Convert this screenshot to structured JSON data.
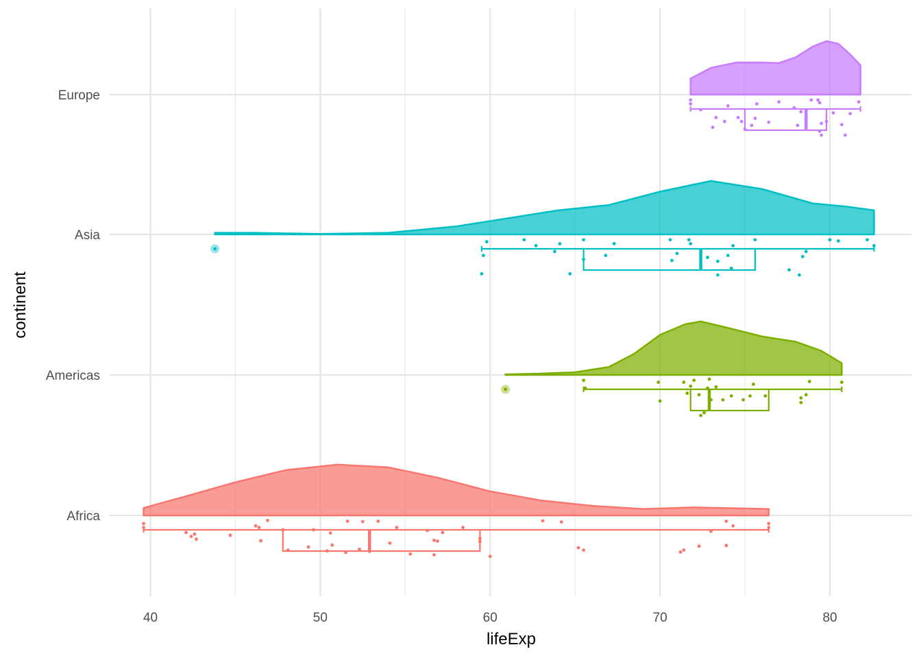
{
  "chart_data": {
    "type": "raincloud",
    "title": "",
    "xlabel": "lifeExp",
    "ylabel": "continent",
    "xlim": [
      37.6,
      84.8
    ],
    "x_ticks": [
      40,
      50,
      60,
      70,
      80
    ],
    "x_tick_labels": [
      "40",
      "50",
      "60",
      "70",
      "80"
    ],
    "categories": [
      "Africa",
      "Americas",
      "Asia",
      "Europe"
    ],
    "grid": true,
    "legend": "none",
    "series": [
      {
        "name": "Africa",
        "color": "#F8766D",
        "box": {
          "min": 39.6,
          "q1": 47.8,
          "median": 52.9,
          "q3": 59.4,
          "max": 76.4
        },
        "outliers": [],
        "density": [
          [
            39.6,
            0.14
          ],
          [
            42,
            0.35
          ],
          [
            45,
            0.62
          ],
          [
            48,
            0.85
          ],
          [
            51,
            0.95
          ],
          [
            54,
            0.9
          ],
          [
            57,
            0.7
          ],
          [
            60,
            0.45
          ],
          [
            63,
            0.28
          ],
          [
            66,
            0.18
          ],
          [
            69,
            0.12
          ],
          [
            72,
            0.15
          ],
          [
            75,
            0.13
          ],
          [
            76.4,
            0.12
          ]
        ],
        "points": [
          [
            39.6,
            0.12
          ],
          [
            39.6,
            0.22
          ],
          [
            42.1,
            0.35
          ],
          [
            42.4,
            0.45
          ],
          [
            42.6,
            0.39
          ],
          [
            42.7,
            0.52
          ],
          [
            44.7,
            0.42
          ],
          [
            46.2,
            0.18
          ],
          [
            46.4,
            0.22
          ],
          [
            46.5,
            0.56
          ],
          [
            46.9,
            0.04
          ],
          [
            47.8,
            0.28
          ],
          [
            48.1,
            0.8
          ],
          [
            49.3,
            0.72
          ],
          [
            49.6,
            0.28
          ],
          [
            50.4,
            0.82
          ],
          [
            50.6,
            0.36
          ],
          [
            50.7,
            0.67
          ],
          [
            51.5,
            0.86
          ],
          [
            51.6,
            0.06
          ],
          [
            52.3,
            0.78
          ],
          [
            52.5,
            0.07
          ],
          [
            52.9,
            0.83
          ],
          [
            53.4,
            0.06
          ],
          [
            54.1,
            0.62
          ],
          [
            54.5,
            0.22
          ],
          [
            55.3,
            0.9
          ],
          [
            56.3,
            0.3
          ],
          [
            56.7,
            0.55
          ],
          [
            56.7,
            0.92
          ],
          [
            56.9,
            0.57
          ],
          [
            57.2,
            0.35
          ],
          [
            58.4,
            0.22
          ],
          [
            59.4,
            0.5
          ],
          [
            59.4,
            0.58
          ],
          [
            60.0,
            0.96
          ],
          [
            63.1,
            0.05
          ],
          [
            64.2,
            0.08
          ],
          [
            65.2,
            0.74
          ],
          [
            65.5,
            0.8
          ],
          [
            71.2,
            0.85
          ],
          [
            71.4,
            0.8
          ],
          [
            72.3,
            0.7
          ],
          [
            73.0,
            0.32
          ],
          [
            73.9,
            0.06
          ],
          [
            73.9,
            0.68
          ],
          [
            74.3,
            0.18
          ],
          [
            76.4,
            0.12
          ],
          [
            76.4,
            0.22
          ]
        ]
      },
      {
        "name": "Americas",
        "color": "#7CAE00",
        "box": {
          "min": 65.5,
          "q1": 71.8,
          "median": 72.9,
          "q3": 76.4,
          "max": 80.7
        },
        "outliers": [
          60.9
        ],
        "density": [
          [
            60.9,
            0.01
          ],
          [
            63,
            0.025
          ],
          [
            65,
            0.05
          ],
          [
            67,
            0.15
          ],
          [
            68.5,
            0.4
          ],
          [
            70,
            0.75
          ],
          [
            71.5,
            0.95
          ],
          [
            72.4,
            1.0
          ],
          [
            74,
            0.88
          ],
          [
            76,
            0.72
          ],
          [
            78,
            0.62
          ],
          [
            79.5,
            0.45
          ],
          [
            80.7,
            0.22
          ]
        ],
        "points": [
          [
            65.5,
            0.05
          ],
          [
            65.6,
            0.25
          ],
          [
            69.9,
            0.1
          ],
          [
            70.0,
            0.58
          ],
          [
            71.4,
            0.1
          ],
          [
            71.6,
            0.38
          ],
          [
            71.8,
            0.2
          ],
          [
            72.0,
            0.05
          ],
          [
            72.3,
            0.42
          ],
          [
            72.4,
            0.95
          ],
          [
            72.6,
            0.88
          ],
          [
            72.8,
            0.25
          ],
          [
            72.9,
            0.02
          ],
          [
            73.0,
            0.55
          ],
          [
            73.3,
            0.22
          ],
          [
            73.7,
            0.55
          ],
          [
            74.2,
            0.45
          ],
          [
            74.9,
            0.55
          ],
          [
            75.3,
            0.45
          ],
          [
            75.5,
            0.15
          ],
          [
            76.2,
            0.45
          ],
          [
            78.3,
            0.5
          ],
          [
            78.6,
            0.42
          ],
          [
            78.8,
            0.08
          ],
          [
            78.3,
            0.62
          ],
          [
            80.7,
            0.1
          ]
        ]
      },
      {
        "name": "Asia",
        "color": "#00BFC4",
        "box": {
          "min": 59.5,
          "q1": 65.5,
          "median": 72.4,
          "q3": 75.6,
          "max": 82.6
        },
        "outliers": [
          43.8
        ],
        "density": [
          [
            43.8,
            0.03
          ],
          [
            46,
            0.03
          ],
          [
            50,
            0.01
          ],
          [
            54,
            0.03
          ],
          [
            58,
            0.15
          ],
          [
            61,
            0.3
          ],
          [
            64,
            0.45
          ],
          [
            67,
            0.55
          ],
          [
            70,
            0.8
          ],
          [
            73,
            1.0
          ],
          [
            76,
            0.85
          ],
          [
            79,
            0.58
          ],
          [
            81,
            0.52
          ],
          [
            82.6,
            0.45
          ]
        ],
        "points": [
          [
            59.5,
            0.92
          ],
          [
            59.6,
            0.45
          ],
          [
            59.8,
            0.1
          ],
          [
            62.0,
            0.05
          ],
          [
            62.7,
            0.2
          ],
          [
            63.8,
            0.35
          ],
          [
            64.1,
            0.15
          ],
          [
            64.7,
            0.92
          ],
          [
            65.5,
            0.05
          ],
          [
            65.5,
            0.55
          ],
          [
            66.8,
            0.45
          ],
          [
            67.3,
            0.15
          ],
          [
            70.6,
            0.05
          ],
          [
            70.7,
            0.58
          ],
          [
            71.0,
            0.4
          ],
          [
            71.7,
            0.05
          ],
          [
            71.8,
            0.15
          ],
          [
            72.4,
            0.35
          ],
          [
            72.8,
            0.5
          ],
          [
            73.4,
            0.6
          ],
          [
            73.4,
            0.95
          ],
          [
            74.2,
            0.78
          ],
          [
            74.0,
            0.45
          ],
          [
            74.3,
            0.2
          ],
          [
            75.6,
            0.05
          ],
          [
            77.6,
            0.82
          ],
          [
            78.2,
            0.95
          ],
          [
            78.4,
            0.48
          ],
          [
            78.6,
            0.35
          ],
          [
            80.0,
            0.05
          ],
          [
            80.5,
            0.08
          ],
          [
            82.2,
            0.05
          ],
          [
            82.6,
            0.2
          ]
        ]
      },
      {
        "name": "Europe",
        "color": "#C77CFF",
        "box": {
          "min": 71.8,
          "q1": 75.0,
          "median": 78.6,
          "q3": 79.8,
          "max": 81.8
        },
        "outliers": [],
        "density": [
          [
            71.8,
            0.3
          ],
          [
            73,
            0.5
          ],
          [
            74.5,
            0.6
          ],
          [
            76,
            0.6
          ],
          [
            77,
            0.59
          ],
          [
            78,
            0.7
          ],
          [
            79,
            0.9
          ],
          [
            79.8,
            1.0
          ],
          [
            80.5,
            0.95
          ],
          [
            81.2,
            0.75
          ],
          [
            81.8,
            0.55
          ]
        ],
        "points": [
          [
            71.8,
            0.15
          ],
          [
            71.8,
            0.05
          ],
          [
            72.4,
            0.3
          ],
          [
            73.1,
            0.75
          ],
          [
            73.3,
            0.5
          ],
          [
            73.8,
            0.6
          ],
          [
            74.0,
            0.2
          ],
          [
            74.6,
            0.5
          ],
          [
            74.8,
            0.6
          ],
          [
            75.0,
            0.8
          ],
          [
            75.4,
            0.7
          ],
          [
            75.6,
            0.52
          ],
          [
            75.7,
            0.15
          ],
          [
            76.4,
            0.62
          ],
          [
            77.0,
            0.1
          ],
          [
            77.9,
            0.25
          ],
          [
            78.1,
            0.7
          ],
          [
            78.3,
            0.35
          ],
          [
            78.6,
            0.5
          ],
          [
            78.9,
            0.05
          ],
          [
            79.3,
            0.05
          ],
          [
            79.4,
            0.12
          ],
          [
            79.4,
            0.85
          ],
          [
            79.5,
            0.65
          ],
          [
            79.5,
            0.95
          ],
          [
            79.8,
            0.6
          ],
          [
            80.2,
            0.38
          ],
          [
            80.7,
            0.68
          ],
          [
            80.9,
            0.95
          ],
          [
            81.2,
            0.4
          ],
          [
            81.7,
            0.1
          ]
        ]
      }
    ]
  }
}
